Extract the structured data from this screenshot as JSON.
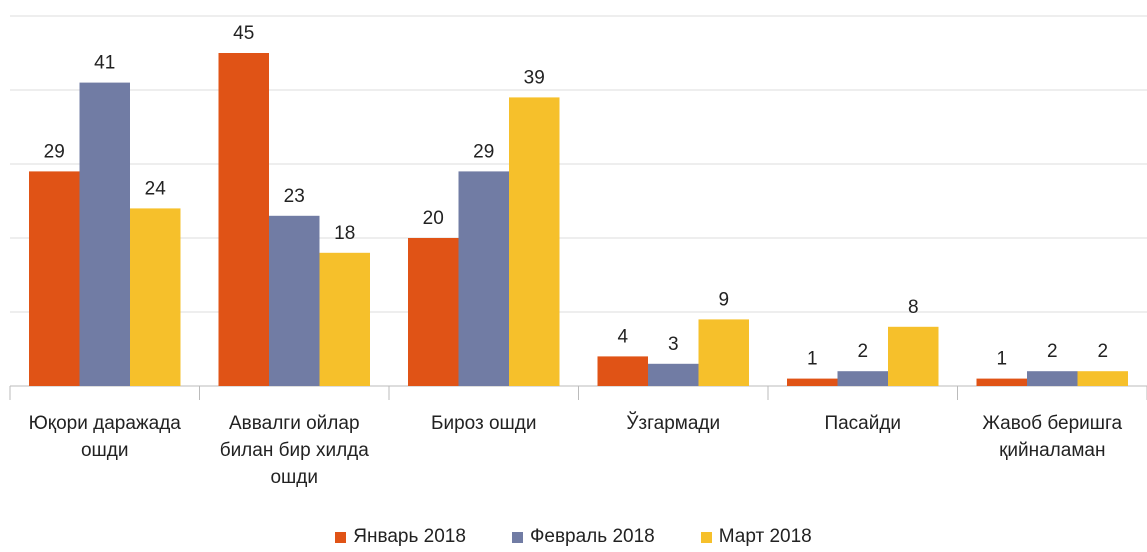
{
  "chart_data": {
    "type": "bar",
    "categories": [
      "Юқори даражада ошди",
      "Аввалги ойлар билан бир хилда ошди",
      "Бироз ошди",
      "Ўзгармади",
      "Пасайди",
      "Жавоб беришга қийналаман"
    ],
    "series": [
      {
        "name": "Январь 2018",
        "color": "#e05316",
        "values": [
          29,
          45,
          20,
          4,
          1,
          1
        ]
      },
      {
        "name": "Февраль 2018",
        "color": "#717ca4",
        "values": [
          41,
          23,
          29,
          3,
          2,
          2
        ]
      },
      {
        "name": "Март 2018",
        "color": "#f6c02b",
        "values": [
          24,
          18,
          39,
          9,
          8,
          2
        ]
      }
    ],
    "ylim": [
      0,
      50
    ],
    "yticks": [
      0,
      10,
      20,
      30,
      40,
      50
    ],
    "grid": true,
    "legend": "bottom"
  }
}
